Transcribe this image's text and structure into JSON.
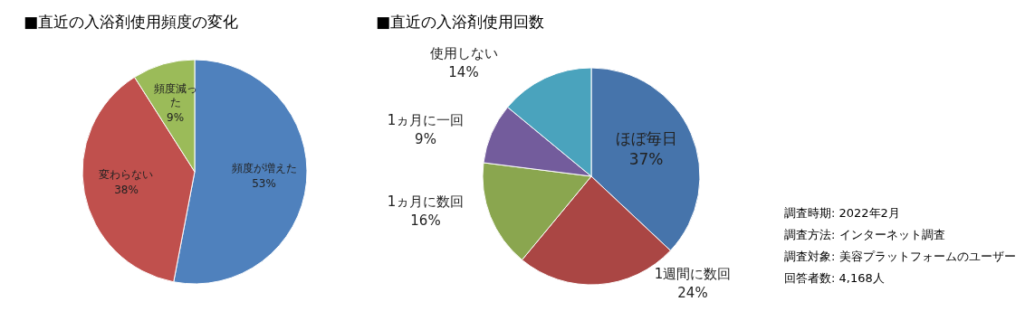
{
  "chart_data": [
    {
      "type": "pie",
      "title": "■直近の入浴剤使用頻度の変化",
      "categories": [
        "頻度が増えた",
        "変わらない",
        "頻度減った"
      ],
      "values": [
        53,
        38,
        9
      ],
      "colors": [
        "#4f81bd",
        "#c0504d",
        "#9bbb59"
      ],
      "value_labels": [
        "53%",
        "38%",
        "9%"
      ]
    },
    {
      "type": "pie",
      "title": "■直近の入浴剤使用回数",
      "categories": [
        "ほぼ毎日",
        "1週間に数回",
        "1ヵ月に数回",
        "1ヵ月に一回",
        "使用しない"
      ],
      "values": [
        37,
        24,
        16,
        9,
        14
      ],
      "colors": [
        "#4674ab",
        "#aa4644",
        "#8aa64f",
        "#735c9c",
        "#4aa3bd"
      ],
      "value_labels": [
        "37%",
        "24%",
        "16%",
        "9%",
        "14%"
      ]
    },
    {
      "type": "other",
      "annotations": [
        "調査時期: 2022年2月",
        "調査方法: インターネット調査",
        "調査対象: 美容プラットフォームのユーザー",
        "回答者数: 4,168人"
      ]
    }
  ]
}
